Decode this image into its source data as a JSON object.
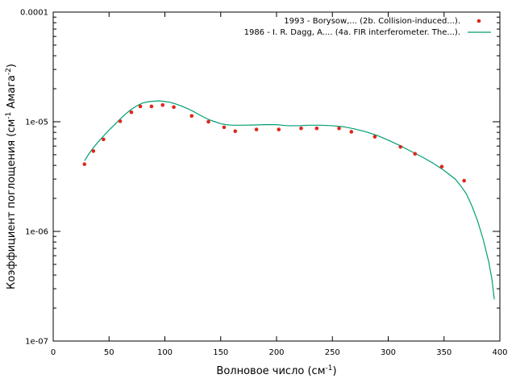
{
  "chart_data": {
    "type": "scatter",
    "xlabel": "Волновое число (см",
    "xlabel_sup": "-1",
    "xlabel_end": ")",
    "ylabel": "Коэффициент поглощения (см",
    "ylabel_sup1": "-1",
    "ylabel_mid": " Амага",
    "ylabel_sup2": "-2",
    "ylabel_end": ")",
    "xlim": [
      0,
      400
    ],
    "ylim": [
      1e-07,
      0.0001
    ],
    "yscale": "log",
    "x_ticks": [
      0,
      50,
      100,
      150,
      200,
      250,
      300,
      350,
      400
    ],
    "x_tick_labels": [
      "0",
      "50",
      "100",
      "150",
      "200",
      "250",
      "300",
      "350",
      "400"
    ],
    "y_ticks": [
      1e-07,
      1e-06,
      1e-05,
      0.0001
    ],
    "y_tick_labels": [
      "1e-07",
      "1e-06",
      "1e-05",
      "0.0001"
    ],
    "grid": false,
    "legend_position": "top-right",
    "colors": {
      "points": "#e0261a",
      "line": "#009e73"
    },
    "series": [
      {
        "name": "1993 - Borysow,... (2b. Collision-induced...).",
        "type": "scatter",
        "points": [
          [
            28,
            4.1e-06
          ],
          [
            36,
            5.4e-06
          ],
          [
            45,
            6.9e-06
          ],
          [
            60,
            1.01e-05
          ],
          [
            70,
            1.22e-05
          ],
          [
            78,
            1.38e-05
          ],
          [
            88,
            1.38e-05
          ],
          [
            98,
            1.42e-05
          ],
          [
            108,
            1.36e-05
          ],
          [
            124,
            1.13e-05
          ],
          [
            139,
            1e-05
          ],
          [
            153,
            8.9e-06
          ],
          [
            163,
            8.2e-06
          ],
          [
            182,
            8.5e-06
          ],
          [
            202,
            8.5e-06
          ],
          [
            222,
            8.7e-06
          ],
          [
            236,
            8.7e-06
          ],
          [
            256,
            8.7e-06
          ],
          [
            267,
            8.1e-06
          ],
          [
            288,
            7.3e-06
          ],
          [
            311,
            5.9e-06
          ],
          [
            324,
            5.1e-06
          ],
          [
            348,
            3.9e-06
          ],
          [
            368,
            2.9e-06
          ]
        ]
      },
      {
        "name": "1986 - I. R. Dagg, A.... (4a. FIR interferometer. The...).",
        "type": "line",
        "points": [
          [
            28,
            4.4e-06
          ],
          [
            32,
            5.1e-06
          ],
          [
            36,
            5.8e-06
          ],
          [
            40,
            6.5e-06
          ],
          [
            45,
            7.4e-06
          ],
          [
            50,
            8.4e-06
          ],
          [
            55,
            9.4e-06
          ],
          [
            60,
            1.06e-05
          ],
          [
            65,
            1.18e-05
          ],
          [
            70,
            1.3e-05
          ],
          [
            75,
            1.4e-05
          ],
          [
            80,
            1.48e-05
          ],
          [
            85,
            1.52e-05
          ],
          [
            90,
            1.54e-05
          ],
          [
            95,
            1.55e-05
          ],
          [
            100,
            1.53e-05
          ],
          [
            105,
            1.5e-05
          ],
          [
            110,
            1.45e-05
          ],
          [
            115,
            1.39e-05
          ],
          [
            120,
            1.32e-05
          ],
          [
            125,
            1.25e-05
          ],
          [
            130,
            1.17e-05
          ],
          [
            135,
            1.1e-05
          ],
          [
            140,
            1.04e-05
          ],
          [
            145,
            1e-05
          ],
          [
            150,
            9.6e-06
          ],
          [
            155,
            9.4e-06
          ],
          [
            160,
            9.3e-06
          ],
          [
            170,
            9.3e-06
          ],
          [
            180,
            9.35e-06
          ],
          [
            190,
            9.4e-06
          ],
          [
            200,
            9.4e-06
          ],
          [
            205,
            9.3e-06
          ],
          [
            210,
            9.2e-06
          ],
          [
            220,
            9.2e-06
          ],
          [
            230,
            9.3e-06
          ],
          [
            240,
            9.3e-06
          ],
          [
            250,
            9.2e-06
          ],
          [
            260,
            9e-06
          ],
          [
            270,
            8.6e-06
          ],
          [
            280,
            8.1e-06
          ],
          [
            290,
            7.5e-06
          ],
          [
            300,
            6.8e-06
          ],
          [
            310,
            6.1e-06
          ],
          [
            320,
            5.4e-06
          ],
          [
            330,
            4.8e-06
          ],
          [
            340,
            4.2e-06
          ],
          [
            350,
            3.6e-06
          ],
          [
            360,
            3e-06
          ],
          [
            365,
            2.6e-06
          ],
          [
            370,
            2.2e-06
          ],
          [
            375,
            1.7e-06
          ],
          [
            380,
            1.25e-06
          ],
          [
            385,
            8.5e-07
          ],
          [
            390,
            5.3e-07
          ],
          [
            393,
            3.6e-07
          ],
          [
            395,
            2.4e-07
          ]
        ]
      }
    ]
  }
}
